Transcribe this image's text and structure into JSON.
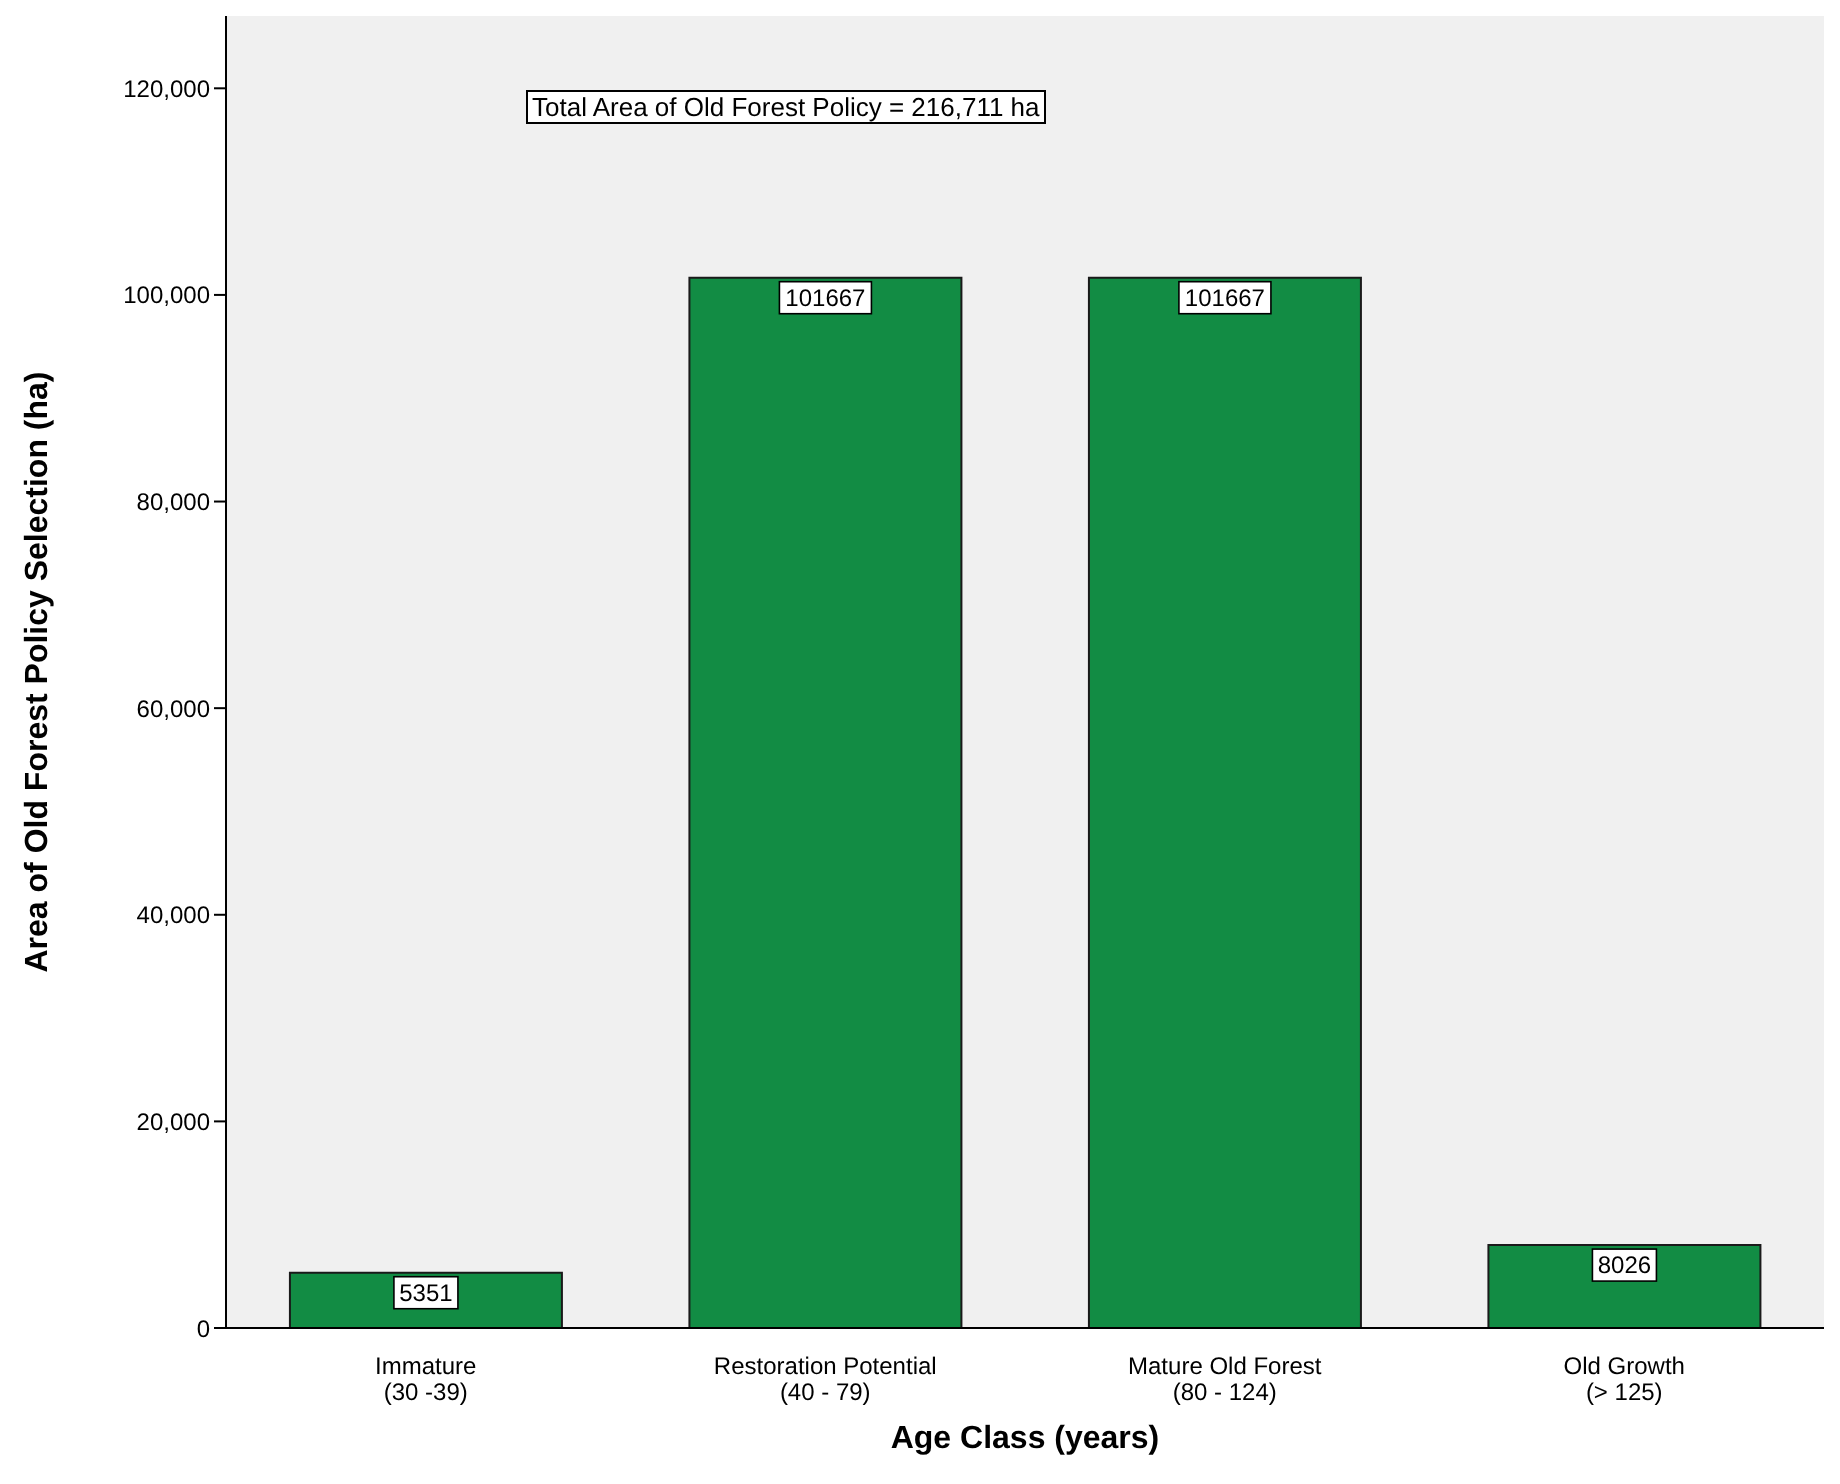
{
  "chart_data": {
    "type": "bar",
    "xlabel": "Age Class (years)",
    "ylabel": "Area of Old Forest Policy Selection (ha)",
    "categories": [
      "Immature\n(30 -39)",
      "Restoration Potential\n(40 - 79)",
      "Mature Old Forest\n(80 - 124)",
      "Old Growth\n(> 125)"
    ],
    "values": [
      5351,
      101667,
      101667,
      8026
    ],
    "color": "#128c44",
    "ylim": [
      0,
      127000
    ],
    "yticks": [
      {
        "value": 0,
        "label": "0"
      },
      {
        "value": 20000,
        "label": "20,000"
      },
      {
        "value": 40000,
        "label": "40,000"
      },
      {
        "value": 60000,
        "label": "60,000"
      },
      {
        "value": 80000,
        "label": "80,000"
      },
      {
        "value": 100000,
        "label": "100,000"
      },
      {
        "value": 120000,
        "label": "120,000"
      }
    ],
    "data_labels": true,
    "annotations": [
      "Total Area of Old Forest Policy = 216,711 ha"
    ]
  }
}
